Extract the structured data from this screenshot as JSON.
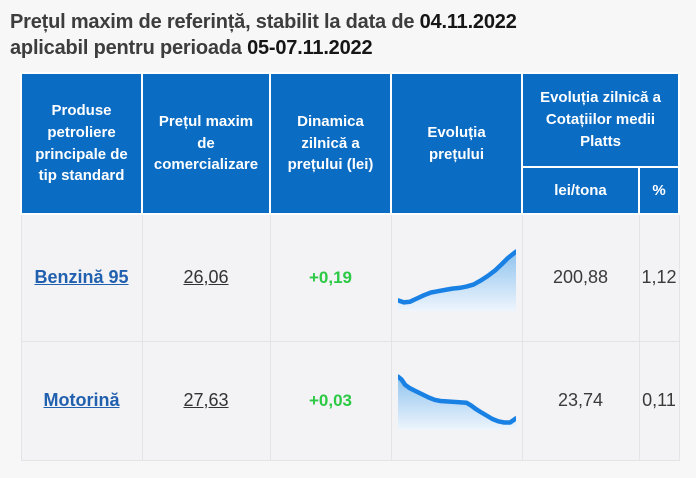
{
  "title": {
    "line1_text": "Prețul maxim de referință, stabilit la data de ",
    "line1_date": "04.11.2022",
    "line2_text": "aplicabil pentru perioada ",
    "line2_date": "05-07.11.2022"
  },
  "table": {
    "headers": {
      "products": "Produse petroliere principale de tip standard",
      "max_price": "Prețul maxim de comercializare",
      "daily_dynamic": "Dinamica zilnică a prețului (lei)",
      "price_evolution": "Evoluția prețului",
      "platts": "Evoluția zilnică a Cotațiilor medii Platts",
      "platts_lei": "lei/tona",
      "platts_pct": "%"
    },
    "rows": [
      {
        "product": "Benzină 95",
        "max_price": "26,06",
        "daily_dynamic": "+0,19",
        "platts_lei": "200,88",
        "platts_pct": "1,12"
      },
      {
        "product": "Motorină",
        "max_price": "27,63",
        "daily_dynamic": "+0,03",
        "platts_lei": "23,74",
        "platts_pct": "0,11"
      }
    ]
  },
  "chart_data": [
    {
      "type": "area",
      "title": "Evoluția prețului Benzină 95",
      "legend": "sparkline, no axes, upward trend",
      "x_range": [
        0,
        100
      ],
      "y_range_pct_from_top": [
        0,
        100
      ],
      "points": [
        [
          0,
          84
        ],
        [
          5,
          87
        ],
        [
          10,
          86
        ],
        [
          16,
          81
        ],
        [
          22,
          76
        ],
        [
          28,
          72
        ],
        [
          34,
          70
        ],
        [
          40,
          68
        ],
        [
          46,
          66
        ],
        [
          52,
          65
        ],
        [
          58,
          63
        ],
        [
          64,
          60
        ],
        [
          70,
          54
        ],
        [
          76,
          47
        ],
        [
          82,
          39
        ],
        [
          88,
          29
        ],
        [
          93,
          20
        ],
        [
          100,
          10
        ]
      ],
      "line_color": "#1a81e4",
      "fill_top": "#8fc3ee",
      "fill_bottom": "#eef5fd"
    },
    {
      "type": "area",
      "title": "Evoluția prețului Motorină",
      "legend": "sparkline, no axes, downward trend",
      "x_range": [
        0,
        100
      ],
      "y_range_pct_from_top": [
        0,
        100
      ],
      "points": [
        [
          0,
          8
        ],
        [
          3,
          13
        ],
        [
          6,
          22
        ],
        [
          10,
          28
        ],
        [
          15,
          33
        ],
        [
          20,
          38
        ],
        [
          26,
          44
        ],
        [
          31,
          48
        ],
        [
          36,
          50
        ],
        [
          44,
          51
        ],
        [
          52,
          52
        ],
        [
          58,
          53
        ],
        [
          62,
          58
        ],
        [
          66,
          64
        ],
        [
          70,
          69
        ],
        [
          75,
          75
        ],
        [
          80,
          81
        ],
        [
          85,
          85
        ],
        [
          90,
          87
        ],
        [
          95,
          87
        ],
        [
          100,
          80
        ]
      ],
      "line_color": "#1a81e4",
      "fill_top": "#8fc3ee",
      "fill_bottom": "#eef5fd"
    }
  ],
  "colors": {
    "header_blue": "#0b6cc4",
    "link_blue": "#2160ae",
    "positive_green": "#2bc944",
    "sparkline_blue": "#1a81e4",
    "cell_background": "#f3f3f5",
    "page_background": "#f7f7f8"
  }
}
